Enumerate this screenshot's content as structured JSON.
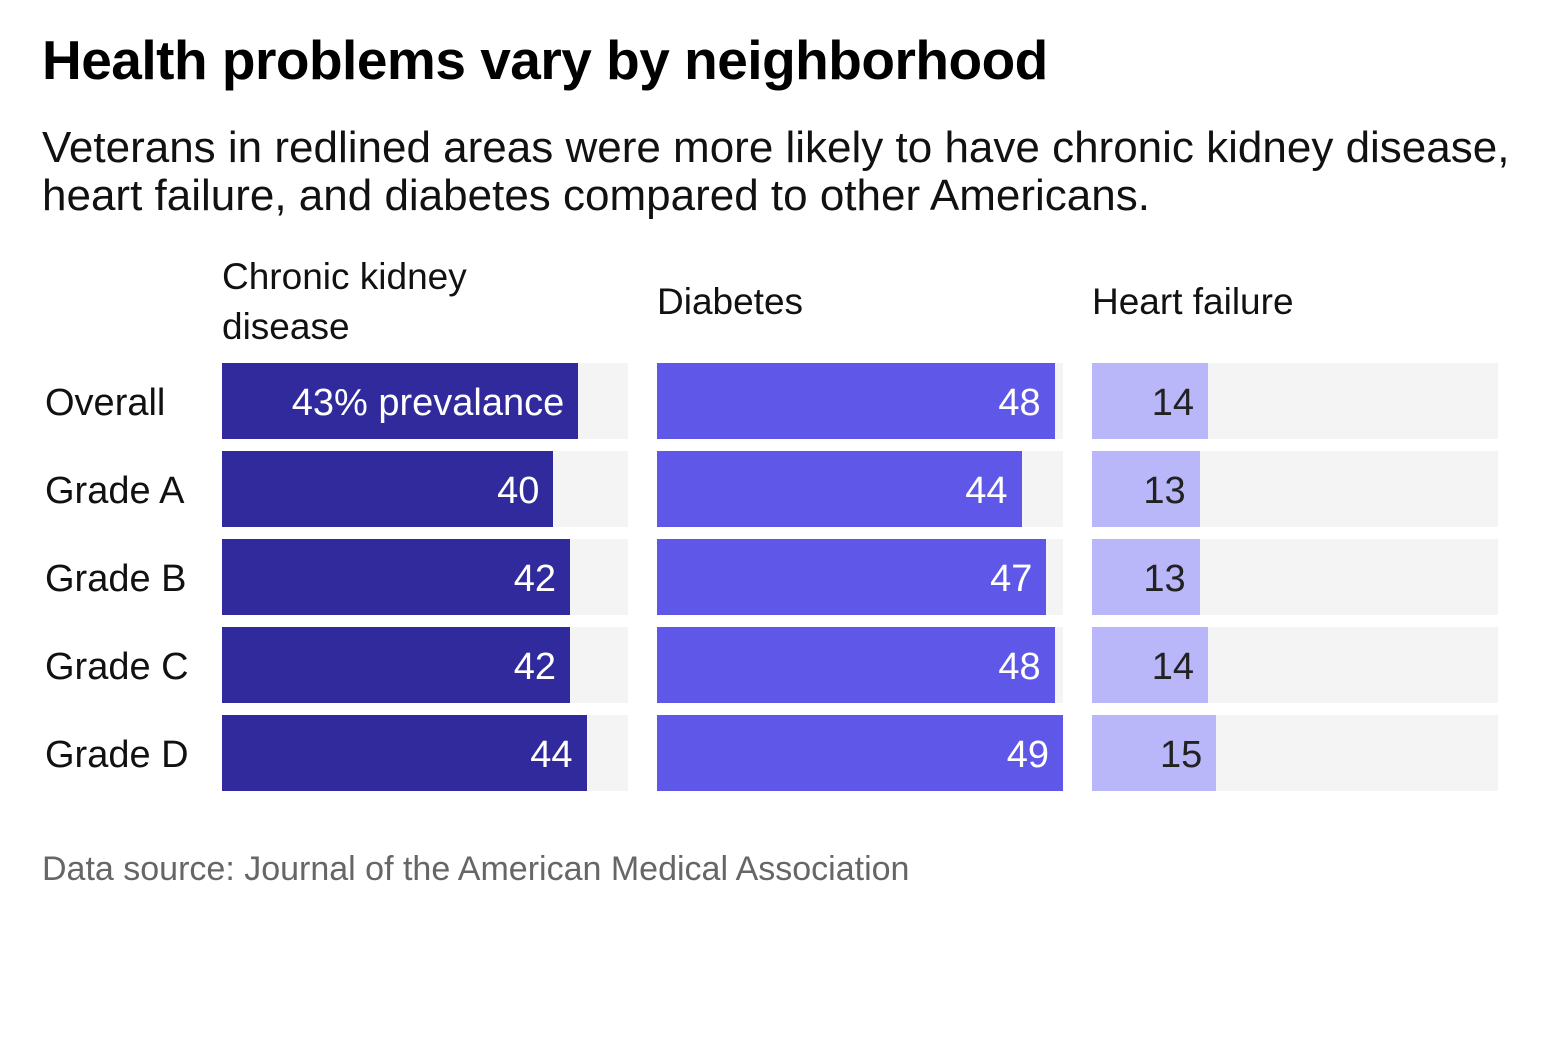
{
  "title": "Health problems vary by neighborhood",
  "subtitle": "Veterans in redlined areas were more likely to have chronic kidney disease, heart failure, and diabetes compared to other Americans.",
  "source": "Data source: Journal of the American Medical Association",
  "chart_data": {
    "type": "bar",
    "orientation": "horizontal",
    "layout": "small multiples",
    "categories": [
      "Overall",
      "Grade A",
      "Grade B",
      "Grade C",
      "Grade D"
    ],
    "xlim": [
      0,
      49
    ],
    "first_label_suffix": "% prevalance",
    "series": [
      {
        "name": "Chronic kidney disease",
        "values": [
          43,
          40,
          42,
          42,
          44
        ],
        "color": "#312a9c",
        "label_color": "#ffffff"
      },
      {
        "name": "Diabetes",
        "values": [
          48,
          44,
          47,
          48,
          49
        ],
        "color": "#5f57e8",
        "label_color": "#ffffff"
      },
      {
        "name": "Heart failure",
        "values": [
          14,
          13,
          13,
          14,
          15
        ],
        "color": "#bab6fa",
        "label_color": "#222222"
      }
    ],
    "track_color": "#f4f4f4"
  }
}
